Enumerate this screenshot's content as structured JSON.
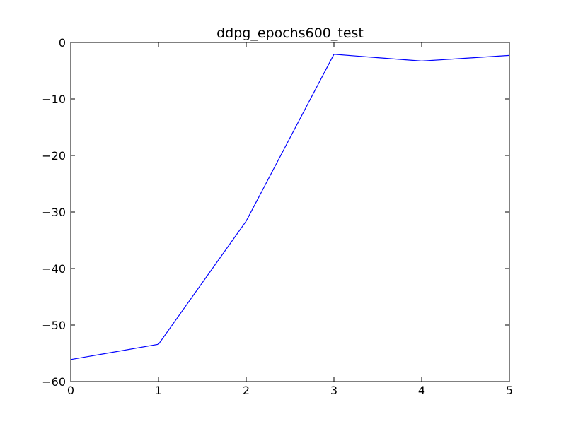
{
  "chart_data": {
    "type": "line",
    "title": "ddpg_epochs600_test",
    "xlabel": "",
    "ylabel": "",
    "xlim": [
      0,
      5
    ],
    "ylim": [
      -60,
      0
    ],
    "xticks": [
      0,
      1,
      2,
      3,
      4,
      5
    ],
    "xtick_labels": [
      "0",
      "1",
      "2",
      "3",
      "4",
      "5"
    ],
    "yticks": [
      0,
      -10,
      -20,
      -30,
      -40,
      -50,
      -60
    ],
    "ytick_labels": [
      "0",
      "−10",
      "−20",
      "−30",
      "−40",
      "−50",
      "−60"
    ],
    "grid": false,
    "series": [
      {
        "color": "#0000ff",
        "x": [
          0,
          1,
          2,
          3,
          4,
          5
        ],
        "y": [
          -56.1,
          -53.4,
          -31.6,
          -2.1,
          -3.3,
          -2.3
        ]
      }
    ]
  }
}
